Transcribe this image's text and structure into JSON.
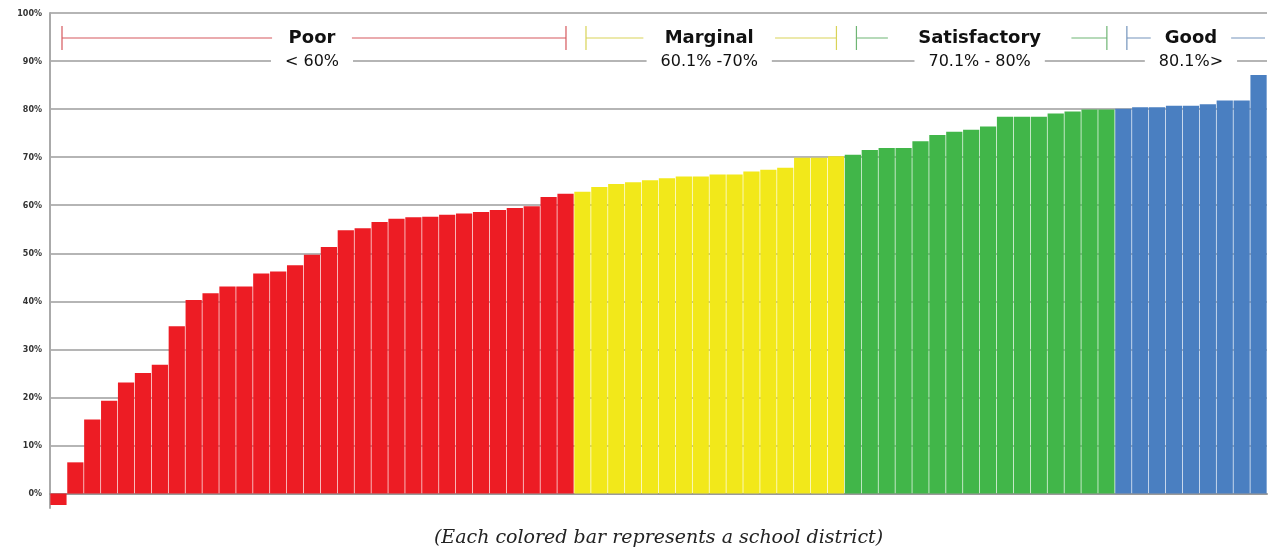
{
  "chart_data": {
    "type": "bar",
    "categories": [
      null,
      null,
      null,
      null,
      null,
      null,
      null,
      null,
      null,
      null,
      null,
      null,
      null,
      null,
      null,
      null,
      null,
      null,
      null,
      null,
      null,
      null,
      null,
      null,
      null,
      null,
      null,
      null,
      null,
      null,
      null,
      null,
      null,
      null,
      null,
      null,
      null,
      null,
      null,
      null,
      null,
      null,
      null,
      null,
      null,
      null,
      null,
      null,
      null,
      null,
      null,
      null,
      null,
      null,
      null,
      null,
      null,
      null,
      null,
      null,
      null,
      null,
      null,
      null,
      null,
      null,
      null,
      null,
      null,
      null,
      null,
      null
    ],
    "values": [
      -2.4,
      6.5,
      15.4,
      19.3,
      23.1,
      25.1,
      26.8,
      34.8,
      40.3,
      41.7,
      43.1,
      43.1,
      45.8,
      46.2,
      47.5,
      49.7,
      51.3,
      54.8,
      55.2,
      56.5,
      57.2,
      57.5,
      57.6,
      58.0,
      58.3,
      58.6,
      59.0,
      59.4,
      59.8,
      61.7,
      62.4,
      62.8,
      63.8,
      64.4,
      64.8,
      65.2,
      65.6,
      66.0,
      66.0,
      66.4,
      66.4,
      67.0,
      67.4,
      67.8,
      69.9,
      69.9,
      70.2,
      70.5,
      71.5,
      71.9,
      71.9,
      73.3,
      74.6,
      75.3,
      75.7,
      76.4,
      78.4,
      78.4,
      78.4,
      79.1,
      79.5,
      79.9,
      79.9,
      80.1,
      80.4,
      80.4,
      80.7,
      80.7,
      81.0,
      81.8,
      81.8,
      87.1
    ],
    "colors": [
      "#ed1c24",
      "#ed1c24",
      "#ed1c24",
      "#ed1c24",
      "#ed1c24",
      "#ed1c24",
      "#ed1c24",
      "#ed1c24",
      "#ed1c24",
      "#ed1c24",
      "#ed1c24",
      "#ed1c24",
      "#ed1c24",
      "#ed1c24",
      "#ed1c24",
      "#ed1c24",
      "#ed1c24",
      "#ed1c24",
      "#ed1c24",
      "#ed1c24",
      "#ed1c24",
      "#ed1c24",
      "#ed1c24",
      "#ed1c24",
      "#ed1c24",
      "#ed1c24",
      "#ed1c24",
      "#ed1c24",
      "#ed1c24",
      "#ed1c24",
      "#ed1c24",
      "#f2e81a",
      "#f2e81a",
      "#f2e81a",
      "#f2e81a",
      "#f2e81a",
      "#f2e81a",
      "#f2e81a",
      "#f2e81a",
      "#f2e81a",
      "#f2e81a",
      "#f2e81a",
      "#f2e81a",
      "#f2e81a",
      "#f2e81a",
      "#f2e81a",
      "#f2e81a",
      "#41b649",
      "#41b649",
      "#41b649",
      "#41b649",
      "#41b649",
      "#41b649",
      "#41b649",
      "#41b649",
      "#41b649",
      "#41b649",
      "#41b649",
      "#41b649",
      "#41b649",
      "#41b649",
      "#41b649",
      "#41b649",
      "#4a7fc1",
      "#4a7fc1",
      "#4a7fc1",
      "#4a7fc1",
      "#4a7fc1",
      "#4a7fc1",
      "#4a7fc1",
      "#4a7fc1",
      "#4a7fc1"
    ],
    "ylim": [
      -3,
      100
    ],
    "yticks": [
      {
        "value": 0,
        "label": "0%"
      },
      {
        "value": 10,
        "label": "10%"
      },
      {
        "value": 20,
        "label": "20%"
      },
      {
        "value": 30,
        "label": "30%"
      },
      {
        "value": 40,
        "label": "40%"
      },
      {
        "value": 50,
        "label": "50%"
      },
      {
        "value": 60,
        "label": "60%"
      },
      {
        "value": 70,
        "label": "70%"
      },
      {
        "value": 80,
        "label": "80%"
      },
      {
        "value": 90,
        "label": "90%"
      },
      {
        "value": 100,
        "label": "100%"
      }
    ],
    "grid": "y",
    "annotations": [
      "Poor",
      "< 60%",
      "Marginal",
      "60.1% -70%",
      "Satisfactory",
      "70.1% - 80%",
      "Good",
      "80.1%>",
      "(Each colored bar represents a school district)"
    ]
  }
}
